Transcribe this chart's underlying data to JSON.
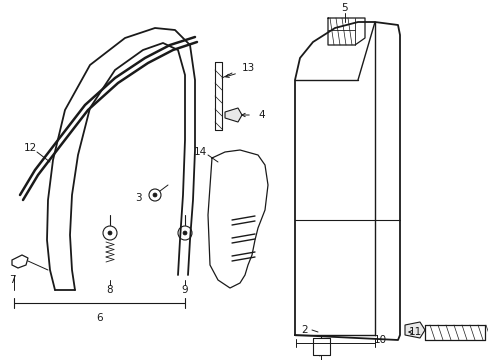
{
  "background_color": "#ffffff",
  "fig_width": 4.89,
  "fig_height": 3.6,
  "dpi": 100,
  "black": "#1a1a1a"
}
